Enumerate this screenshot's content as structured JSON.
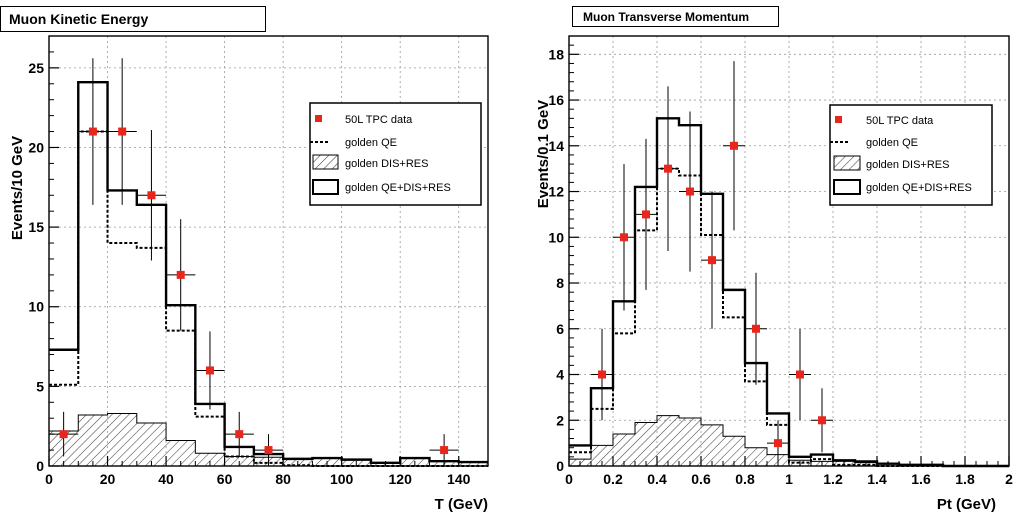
{
  "chart_data": [
    {
      "type": "histogram",
      "title": "Muon Kinetic Energy",
      "xlabel": "T (GeV)",
      "ylabel": "Events/10 GeV",
      "xlim": [
        0,
        150
      ],
      "ylim": [
        0,
        27
      ],
      "bin_width": 10,
      "xticks": [
        0,
        20,
        40,
        60,
        80,
        100,
        120,
        140
      ],
      "yticks": [
        0,
        5,
        10,
        15,
        20,
        25
      ],
      "grid": true,
      "legend_position": "top-right",
      "legend": [
        "50L TPC data",
        "golden QE",
        "golden DIS+RES",
        "golden QE+DIS+RES"
      ],
      "series": [
        {
          "name": "golden QE",
          "style": "dashed",
          "values": [
            5.1,
            21.0,
            14.0,
            13.7,
            8.5,
            3.1,
            0.6,
            0.2,
            0.05,
            0.0,
            0.0,
            0.0,
            0.0,
            0.0,
            0.0
          ]
        },
        {
          "name": "golden DIS+RES",
          "style": "hatched",
          "values": [
            2.2,
            3.2,
            3.3,
            2.7,
            1.6,
            0.8,
            0.6,
            0.55,
            0.4,
            0.5,
            0.4,
            0.2,
            0.5,
            0.3,
            0.25
          ]
        },
        {
          "name": "golden QE+DIS+RES",
          "style": "solid",
          "values": [
            7.3,
            24.1,
            17.3,
            16.4,
            10.1,
            3.9,
            1.2,
            0.75,
            0.45,
            0.5,
            0.4,
            0.2,
            0.5,
            0.3,
            0.25
          ]
        },
        {
          "name": "50L TPC data",
          "style": "points",
          "x": [
            5,
            15,
            25,
            35,
            45,
            55,
            65,
            75,
            135
          ],
          "y": [
            2,
            21,
            21,
            17,
            12,
            6,
            2,
            1,
            1
          ],
          "yerr": [
            1.4,
            4.6,
            4.6,
            4.1,
            3.5,
            2.45,
            1.4,
            1.0,
            1.0
          ],
          "xerr": 5
        }
      ]
    },
    {
      "type": "histogram",
      "title": "Muon Transverse Momentum",
      "xlabel": "Pt (GeV)",
      "ylabel": "Events/0.1 GeV",
      "xlim": [
        0,
        2
      ],
      "ylim": [
        0,
        18.8
      ],
      "bin_width": 0.1,
      "xticks": [
        0,
        0.2,
        0.4,
        0.6,
        0.8,
        1,
        1.2,
        1.4,
        1.6,
        1.8,
        2
      ],
      "yticks": [
        0,
        2,
        4,
        6,
        8,
        10,
        12,
        14,
        16,
        18
      ],
      "grid": true,
      "legend_position": "top-right",
      "legend": [
        "50L TPC data",
        "golden QE",
        "golden DIS+RES",
        "golden QE+DIS+RES"
      ],
      "series": [
        {
          "name": "golden QE",
          "style": "dashed",
          "values": [
            0.6,
            2.5,
            5.8,
            10.3,
            13.0,
            12.7,
            10.1,
            6.5,
            3.7,
            1.8,
            0.15,
            0.3,
            0.05,
            0.05,
            0.0,
            0.0,
            0.0,
            0.0,
            0.0,
            0.0
          ]
        },
        {
          "name": "golden DIS+RES",
          "style": "hatched",
          "values": [
            0.3,
            0.9,
            1.4,
            1.9,
            2.2,
            2.1,
            1.8,
            1.3,
            0.8,
            0.5,
            0.25,
            0.2,
            0.2,
            0.15,
            0.1,
            0.05,
            0.05,
            0.0,
            0.0,
            0.0
          ]
        },
        {
          "name": "golden QE+DIS+RES",
          "style": "solid",
          "values": [
            0.9,
            3.4,
            7.2,
            12.2,
            15.2,
            14.9,
            11.9,
            7.7,
            4.5,
            2.3,
            0.4,
            0.5,
            0.25,
            0.2,
            0.1,
            0.05,
            0.05,
            0.0,
            0.0,
            0.0
          ]
        },
        {
          "name": "50L TPC data",
          "style": "points",
          "x": [
            0.15,
            0.25,
            0.35,
            0.45,
            0.55,
            0.65,
            0.75,
            0.85,
            0.95,
            1.05,
            1.15
          ],
          "y": [
            4,
            10,
            11,
            13,
            12,
            9,
            14,
            6,
            1,
            4,
            2
          ],
          "yerr": [
            2.0,
            3.2,
            3.3,
            3.6,
            3.5,
            3.0,
            3.7,
            2.45,
            1.0,
            2.0,
            1.4
          ],
          "xerr": 0.05
        }
      ]
    }
  ]
}
